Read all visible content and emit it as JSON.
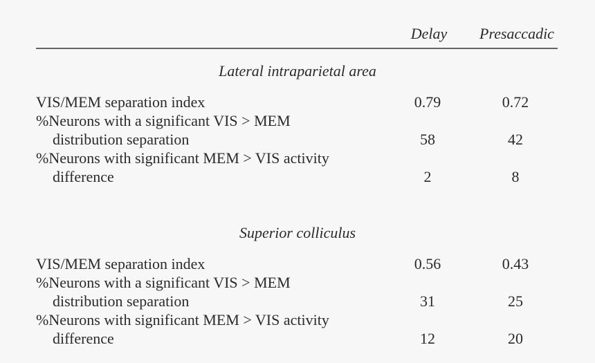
{
  "table": {
    "columns": [
      "Delay",
      "Presaccadic"
    ],
    "sections": [
      {
        "title": "Lateral intraparietal area",
        "rows": [
          {
            "label": [
              "VIS/MEM separation index"
            ],
            "values": [
              0.79,
              0.72
            ]
          },
          {
            "label": [
              "%Neurons with a significant VIS > MEM",
              "distribution separation"
            ],
            "values": [
              58,
              42
            ]
          },
          {
            "label": [
              "%Neurons with significant MEM > VIS activity",
              "difference"
            ],
            "values": [
              2,
              8
            ]
          }
        ]
      },
      {
        "title": "Superior colliculus",
        "rows": [
          {
            "label": [
              "VIS/MEM separation index"
            ],
            "values": [
              0.56,
              0.43
            ]
          },
          {
            "label": [
              "%Neurons with a significant VIS > MEM",
              "distribution separation"
            ],
            "values": [
              31,
              25
            ]
          },
          {
            "label": [
              "%Neurons with significant MEM > VIS activity",
              "difference"
            ],
            "values": [
              12,
              20
            ]
          }
        ]
      }
    ]
  }
}
